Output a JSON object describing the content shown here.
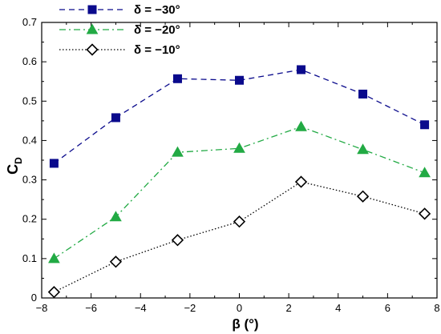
{
  "chart_data": {
    "type": "line",
    "xlabel": "β (°)",
    "ylabel_main": "C",
    "ylabel_sub": "D",
    "xlim": [
      -8,
      8
    ],
    "ylim": [
      0,
      0.7
    ],
    "x_ticks": [
      -8,
      -6,
      -4,
      -2,
      0,
      2,
      4,
      6,
      8
    ],
    "x_tick_labels": [
      "−8",
      "−6",
      "−4",
      "−2",
      "0",
      "2",
      "4",
      "6",
      "8"
    ],
    "y_ticks": [
      0,
      0.1,
      0.2,
      0.3,
      0.4,
      0.5,
      0.6,
      0.7
    ],
    "y_tick_labels": [
      "0",
      "0.1",
      "0.2",
      "0.3",
      "0.4",
      "0.5",
      "0.6",
      "0.7"
    ],
    "legend_position": "top-left",
    "grid": false,
    "x": [
      -7.5,
      -5,
      -2.5,
      0,
      2.5,
      5,
      7.5
    ],
    "series": [
      {
        "name": "δ = −30°",
        "values": [
          0.342,
          0.458,
          0.557,
          0.553,
          0.58,
          0.518,
          0.44
        ],
        "color": "#0a0a8c",
        "marker": "square",
        "dash": "dashed"
      },
      {
        "name": "δ = −20°",
        "values": [
          0.1,
          0.206,
          0.37,
          0.38,
          0.435,
          0.377,
          0.318
        ],
        "color": "#22aa44",
        "marker": "triangle",
        "dash": "dashdot"
      },
      {
        "name": "δ = −10°",
        "values": [
          0.015,
          0.092,
          0.147,
          0.194,
          0.295,
          0.258,
          0.214
        ],
        "color": "#000000",
        "marker": "diamond",
        "dash": "dotted"
      }
    ]
  }
}
